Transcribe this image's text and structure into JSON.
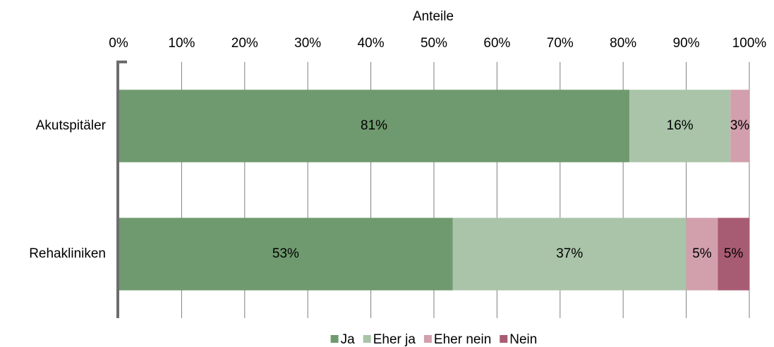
{
  "chart_data": {
    "type": "stacked_barh",
    "x_label": "Anteile",
    "categories": [
      "Akutspitäler",
      "Rehakliniken"
    ],
    "series": [
      {
        "name": "Ja",
        "color": "#6f9a6f",
        "values": [
          81,
          53
        ],
        "value_labels": [
          "81%",
          "53%"
        ]
      },
      {
        "name": "Eher ja",
        "color": "#a9c4a9",
        "values": [
          16,
          37
        ],
        "value_labels": [
          "16%",
          "37%"
        ]
      },
      {
        "name": "Eher nein",
        "color": "#d1a0ac",
        "values": [
          3,
          5
        ],
        "value_labels": [
          "3%",
          "5%"
        ]
      },
      {
        "name": "Nein",
        "color": "#a85c73",
        "values": [
          null,
          5
        ],
        "value_labels": [
          null,
          "5%"
        ]
      }
    ],
    "xlim": [
      0,
      100
    ],
    "xticks": [
      {
        "value": 0,
        "label": "0%"
      },
      {
        "value": 10,
        "label": "10%"
      },
      {
        "value": 20,
        "label": "20%"
      },
      {
        "value": 30,
        "label": "30%"
      },
      {
        "value": 40,
        "label": "40%"
      },
      {
        "value": 50,
        "label": "50%"
      },
      {
        "value": 60,
        "label": "60%"
      },
      {
        "value": 70,
        "label": "70%"
      },
      {
        "value": 80,
        "label": "80%"
      },
      {
        "value": 90,
        "label": "90%"
      },
      {
        "value": 100,
        "label": "100%"
      }
    ],
    "grid": true,
    "legend": "bottom"
  }
}
